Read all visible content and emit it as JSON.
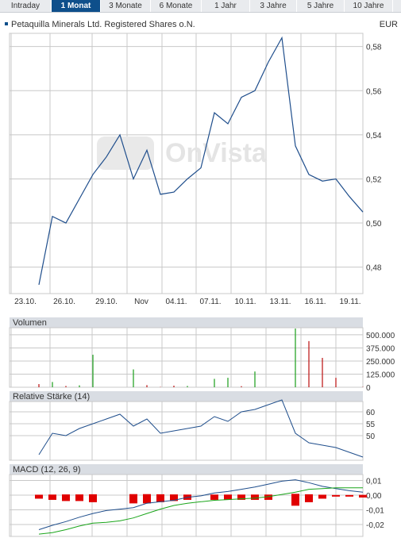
{
  "tabs": [
    {
      "label": "Intraday",
      "active": false
    },
    {
      "label": "1 Monat",
      "active": true
    },
    {
      "label": "3 Monate",
      "active": false
    },
    {
      "label": "6 Monate",
      "active": false
    },
    {
      "label": "1 Jahr",
      "active": false
    },
    {
      "label": "3 Jahre",
      "active": false
    },
    {
      "label": "5 Jahre",
      "active": false
    },
    {
      "label": "10 Jahre",
      "active": false
    }
  ],
  "header": {
    "title": "Petaquilla Minerals Ltd. Registered Shares o.N.",
    "currency": "EUR"
  },
  "watermark": "OnVista",
  "colors": {
    "line": "#1f4e8c",
    "grid": "#c8c8c8",
    "macd_histogram": "#e00000",
    "signal": "#1aa51a",
    "volume_up": "#2aa52a",
    "volume_down": "#c02020",
    "panel_header": "#d9dde3"
  },
  "chart_data": [
    {
      "type": "line",
      "name": "price",
      "x_labels": [
        "23.10.",
        "26.10.",
        "29.10.",
        "Nov",
        "04.11.",
        "07.11.",
        "10.11.",
        "13.11.",
        "16.11.",
        "19.11."
      ],
      "y_ticks": [
        "0,58",
        "0,56",
        "0,54",
        "0,52",
        "0,50",
        "0,48"
      ],
      "ylim": [
        0.468,
        0.586
      ],
      "values": [
        0.472,
        0.503,
        0.5,
        0.511,
        0.522,
        0.53,
        0.54,
        0.52,
        0.533,
        0.513,
        0.514,
        0.52,
        0.525,
        0.55,
        0.545,
        0.557,
        0.56,
        0.573,
        0.584,
        0.535,
        0.522,
        0.519,
        0.52,
        0.512,
        0.505
      ]
    },
    {
      "type": "bar",
      "name": "volume",
      "title": "Volumen",
      "y_ticks": [
        "500.000",
        "375.000",
        "250.000",
        "125.000",
        "0"
      ],
      "ylim": [
        0,
        560000
      ],
      "values": [
        30000,
        50000,
        12000,
        18000,
        310000,
        0,
        0,
        170000,
        20000,
        3000,
        15000,
        12000,
        0,
        80000,
        90000,
        10000,
        150000,
        0,
        0,
        580000,
        440000,
        280000,
        90000,
        0,
        3000
      ],
      "up": [
        false,
        true,
        false,
        true,
        true,
        true,
        true,
        true,
        false,
        false,
        false,
        true,
        true,
        true,
        true,
        false,
        true,
        true,
        true,
        true,
        false,
        false,
        false,
        true,
        false
      ]
    },
    {
      "type": "line",
      "name": "rsi",
      "title": "Relative Stärke (14)",
      "y_ticks": [
        "60",
        "55",
        "50"
      ],
      "ylim": [
        41,
        64
      ],
      "values": [
        42,
        51,
        50,
        53,
        55,
        57,
        59,
        54,
        57,
        51,
        52,
        53,
        54,
        58,
        56,
        60,
        61,
        63,
        65,
        51,
        47,
        46,
        45,
        43,
        41
      ]
    },
    {
      "type": "bar+line",
      "name": "macd",
      "title": "MACD (12, 26, 9)",
      "y_ticks": [
        "0,01",
        "0,00",
        "-0,01",
        "-0,02"
      ],
      "ylim": [
        -0.027,
        0.0135
      ],
      "histogram": [
        -0.003,
        -0.004,
        -0.005,
        -0.005,
        -0.006,
        0,
        0,
        -0.007,
        -0.007,
        -0.006,
        -0.005,
        -0.004,
        0,
        -0.004,
        -0.004,
        -0.004,
        -0.004,
        -0.004,
        0,
        -0.009,
        -0.006,
        -0.003,
        -0.001,
        -0.001,
        -0.002
      ],
      "macd": [
        -0.0235,
        -0.0205,
        -0.018,
        -0.015,
        -0.0125,
        -0.0105,
        -0.0095,
        -0.0085,
        -0.0055,
        -0.0045,
        -0.0035,
        -0.0015,
        -0.0005,
        0.0015,
        0.0025,
        0.004,
        0.0055,
        0.0075,
        0.0095,
        0.0105,
        0.0085,
        0.006,
        0.0045,
        0.003,
        0.002
      ],
      "signal": [
        -0.0265,
        -0.0255,
        -0.0235,
        -0.021,
        -0.019,
        -0.0185,
        -0.0175,
        -0.0155,
        -0.0125,
        -0.0095,
        -0.007,
        -0.0055,
        -0.0045,
        -0.0035,
        -0.003,
        -0.0025,
        -0.002,
        -0.001,
        0.0005,
        0.002,
        0.004,
        0.0045,
        0.005,
        0.005,
        0.005
      ]
    }
  ]
}
